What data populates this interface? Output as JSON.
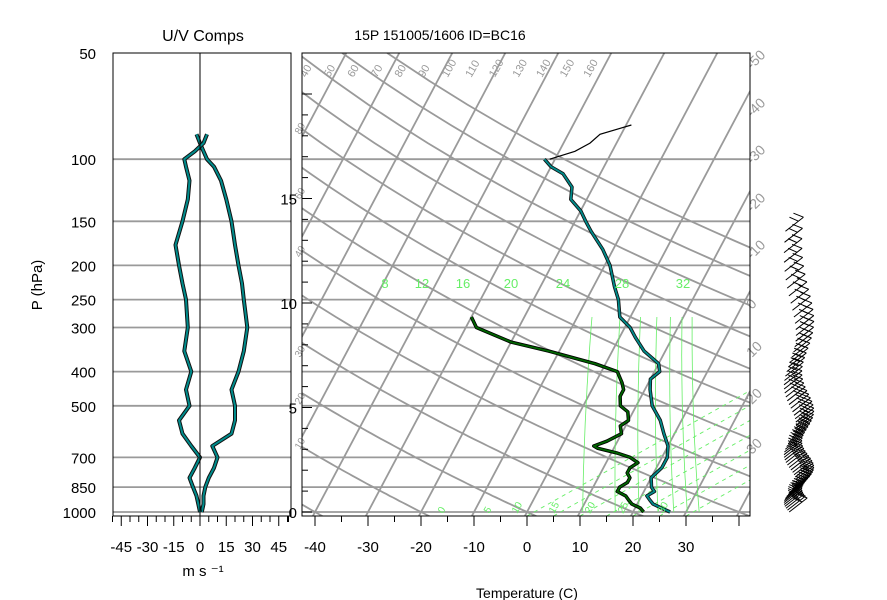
{
  "colors": {
    "grid": "#9a9a9a",
    "mixing_ratio": "#66ee66",
    "temperature": "#006400",
    "dewpoint_outline": "#111111",
    "dewpoint_fill": "#008b8b",
    "upper_sounding": "#000000",
    "v_upper": "#0000cc"
  },
  "chart_data": [
    {
      "type": "line",
      "title": "U/V Comps",
      "xlabel": "m s ⁻¹",
      "ylabel": "P (hPa)",
      "xlim": [
        -50,
        50
      ],
      "x_ticks": [
        "-45",
        "-30",
        "-15",
        "0",
        "15",
        "30",
        "45"
      ],
      "y_ticks": [
        "50",
        "100",
        "150",
        "200",
        "250",
        "300",
        "400",
        "500",
        "700",
        "850",
        "1000"
      ],
      "y_scale": "log-pressure",
      "ylim": [
        1000,
        50
      ],
      "series": [
        {
          "p": [
            1000,
            950,
            900,
            850,
            800,
            750,
            700,
            650,
            600,
            550,
            500,
            450,
            400,
            350,
            300,
            250,
            225,
            200,
            175,
            150,
            130,
            115,
            105,
            100,
            95,
            90,
            85
          ],
          "values": [
            1,
            2,
            2,
            3,
            5,
            8,
            10,
            7,
            18,
            20,
            20,
            18,
            22,
            25,
            27,
            25,
            24,
            22,
            20,
            18,
            15,
            12,
            8,
            4,
            2,
            0,
            -2
          ]
        },
        {
          "p": [
            1000,
            950,
            900,
            850,
            800,
            750,
            700,
            650,
            600,
            550,
            500,
            450,
            400,
            350,
            300,
            250,
            225,
            200,
            175,
            150,
            130,
            115,
            105,
            100,
            95,
            90,
            85
          ],
          "values": [
            0,
            -1,
            -2,
            -4,
            -6,
            -3,
            0,
            -5,
            -10,
            -12,
            -6,
            -8,
            -5,
            -9,
            -7,
            -8,
            -10,
            -12,
            -14,
            -10,
            -7,
            -6,
            -8,
            -9,
            -3,
            2,
            4
          ]
        }
      ]
    },
    {
      "type": "line",
      "title": "15P 151005/1606 ID=BC16",
      "xlabel": "Temperature (C)",
      "x_ticks": [
        "-40",
        "-30",
        "-20",
        "-10",
        "0",
        "10",
        "20",
        "30"
      ],
      "height_ticks_km": [
        "0",
        "5",
        "10",
        "15"
      ],
      "xlim": [
        -43,
        42
      ],
      "ylim": [
        1000,
        50
      ],
      "theta_labels": [
        "40",
        "50",
        "60",
        "70",
        "80",
        "90",
        "100",
        "110",
        "120",
        "130",
        "140",
        "150",
        "160"
      ],
      "mixing_ratio_labels": [
        "8",
        "12",
        "16",
        "20",
        "24",
        "28",
        "32"
      ],
      "isotherm_edge_labels": [
        "-50",
        "-40",
        "-30",
        "-20",
        "-10",
        "0",
        "10",
        "20",
        "30"
      ],
      "side_labels_left": [
        "80",
        "60",
        "40",
        "30",
        "20",
        "10"
      ],
      "wetbulb_labels": [
        "0",
        "5",
        "10",
        "15",
        "20",
        "25",
        "30"
      ],
      "series": [
        {
          "name": "",
          "p": [
            1000,
            975,
            950,
            925,
            900,
            875,
            850,
            825,
            800,
            775,
            750,
            725,
            700,
            680,
            660,
            650,
            630,
            600,
            570,
            550,
            520,
            500,
            470,
            450,
            430,
            400,
            380,
            350,
            330,
            300,
            280
          ],
          "values": [
            22,
            21,
            19,
            18,
            17,
            15,
            15,
            16,
            16,
            15,
            15,
            16,
            14,
            11,
            7,
            6,
            8,
            10,
            9,
            10,
            9,
            7,
            6,
            6,
            5,
            3,
            -2,
            -12,
            -20,
            -28,
            -30
          ]
        },
        {
          "name": "",
          "p": [
            1000,
            975,
            950,
            925,
            900,
            875,
            850,
            800,
            750,
            700,
            650,
            600,
            550,
            500,
            450,
            420,
            400,
            380,
            350,
            320,
            300,
            280,
            250,
            230,
            200,
            180,
            160,
            150,
            140,
            130,
            120,
            110,
            105,
            100
          ],
          "values": [
            27,
            25,
            23,
            22,
            21,
            22,
            21,
            20,
            21,
            21,
            20,
            18,
            16,
            13,
            11,
            10,
            11,
            10,
            6,
            3,
            1,
            -2,
            -4,
            -6,
            -9,
            -12,
            -16,
            -18,
            -20,
            -23,
            -24,
            -27,
            -30,
            -32
          ]
        },
        {
          "name": "",
          "p": [
            100,
            95,
            90,
            85,
            80
          ],
          "values": [
            -31,
            -27,
            -25,
            -24,
            -19
          ]
        }
      ]
    }
  ]
}
